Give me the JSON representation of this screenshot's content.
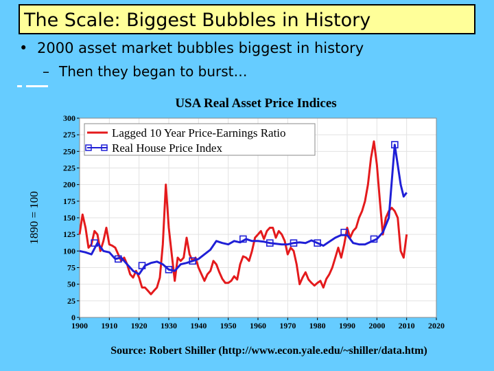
{
  "slide": {
    "title": "The Scale: Biggest Bubbles in History",
    "bullet_main": "2000 asset market bubbles biggest in history",
    "bullet_sub": "Then they began to burst…",
    "bullet_symbol": "•",
    "sub_symbol": "–"
  },
  "colors": {
    "background": "#66ccff",
    "title_bg": "#ffff99",
    "pe_series": "#e41a1c",
    "house_series": "#1f1fd6",
    "grid": "#e2e2e2",
    "plot_bg": "#ffffff"
  },
  "chart_data": {
    "type": "line",
    "title": "USA Real Asset Price Indices",
    "ylabel": "1890 = 100",
    "xlabel": "",
    "source": "Source: Robert Shiller (http://www.econ.yale.edu/~shiller/data.htm)",
    "xlim": [
      1900,
      2020
    ],
    "ylim": [
      0,
      300
    ],
    "xticks": [
      1900,
      1910,
      1920,
      1930,
      1940,
      1950,
      1960,
      1970,
      1980,
      1990,
      2000,
      2010,
      2020
    ],
    "yticks": [
      0,
      25,
      50,
      75,
      100,
      125,
      150,
      175,
      200,
      225,
      250,
      275,
      300
    ],
    "grid": true,
    "legend_position": "top-left",
    "series": [
      {
        "name": "Lagged 10 Year Price-Earnings Ratio",
        "x": [
          1900,
          1901,
          1902,
          1903,
          1904,
          1905,
          1906,
          1907,
          1908,
          1909,
          1910,
          1911,
          1912,
          1913,
          1914,
          1915,
          1916,
          1917,
          1918,
          1919,
          1920,
          1921,
          1922,
          1923,
          1924,
          1925,
          1926,
          1927,
          1928,
          1929,
          1930,
          1931,
          1932,
          1933,
          1934,
          1935,
          1936,
          1937,
          1938,
          1939,
          1940,
          1941,
          1942,
          1943,
          1944,
          1945,
          1946,
          1947,
          1948,
          1949,
          1950,
          1951,
          1952,
          1953,
          1954,
          1955,
          1956,
          1957,
          1958,
          1959,
          1960,
          1961,
          1962,
          1963,
          1964,
          1965,
          1966,
          1967,
          1968,
          1969,
          1970,
          1971,
          1972,
          1973,
          1974,
          1975,
          1976,
          1977,
          1978,
          1979,
          1980,
          1981,
          1982,
          1983,
          1984,
          1985,
          1986,
          1987,
          1988,
          1989,
          1990,
          1991,
          1992,
          1993,
          1994,
          1995,
          1996,
          1997,
          1998,
          1999,
          2000,
          2001,
          2002,
          2003,
          2004,
          2005,
          2006,
          2007,
          2008,
          2009,
          2010
        ],
        "values": [
          125,
          155,
          135,
          105,
          110,
          130,
          125,
          100,
          115,
          135,
          110,
          108,
          105,
          95,
          85,
          90,
          80,
          65,
          60,
          70,
          60,
          45,
          45,
          40,
          35,
          40,
          45,
          60,
          110,
          200,
          135,
          95,
          55,
          90,
          85,
          90,
          120,
          95,
          85,
          90,
          75,
          65,
          55,
          65,
          70,
          85,
          80,
          68,
          58,
          52,
          52,
          55,
          62,
          57,
          80,
          92,
          90,
          85,
          100,
          120,
          125,
          130,
          118,
          130,
          135,
          135,
          120,
          130,
          125,
          115,
          95,
          105,
          100,
          80,
          50,
          60,
          68,
          57,
          52,
          48,
          52,
          55,
          45,
          58,
          65,
          75,
          90,
          105,
          90,
          110,
          135,
          120,
          130,
          135,
          150,
          160,
          175,
          200,
          240,
          265,
          230,
          175,
          125,
          150,
          160,
          165,
          160,
          150,
          100,
          90,
          125
        ]
      },
      {
        "name": "Real House Price Index",
        "x": [
          1900,
          1902,
          1904,
          1906,
          1908,
          1910,
          1912,
          1914,
          1916,
          1918,
          1920,
          1922,
          1924,
          1926,
          1928,
          1930,
          1932,
          1934,
          1936,
          1938,
          1940,
          1942,
          1944,
          1946,
          1948,
          1950,
          1952,
          1954,
          1956,
          1958,
          1960,
          1962,
          1964,
          1966,
          1968,
          1970,
          1972,
          1974,
          1976,
          1978,
          1980,
          1982,
          1984,
          1986,
          1988,
          1990,
          1992,
          1994,
          1996,
          1998,
          2000,
          2002,
          2004,
          2006,
          2008,
          2009,
          2010
        ],
        "values": [
          100,
          98,
          95,
          112,
          100,
          98,
          88,
          90,
          80,
          70,
          65,
          78,
          82,
          84,
          80,
          72,
          70,
          80,
          82,
          85,
          88,
          95,
          102,
          115,
          112,
          110,
          115,
          113,
          118,
          115,
          115,
          114,
          112,
          111,
          110,
          110,
          112,
          113,
          112,
          116,
          112,
          108,
          114,
          120,
          124,
          124,
          112,
          110,
          110,
          114,
          118,
          128,
          150,
          260,
          200,
          182,
          188
        ]
      }
    ],
    "markers": [
      {
        "series": 1,
        "x": 1905,
        "value": 112
      },
      {
        "series": 1,
        "x": 1913,
        "value": 88
      },
      {
        "series": 1,
        "x": 1921,
        "value": 78
      },
      {
        "series": 1,
        "x": 1930,
        "value": 72
      },
      {
        "series": 1,
        "x": 1938,
        "value": 85
      },
      {
        "series": 1,
        "x": 1955,
        "value": 118
      },
      {
        "series": 1,
        "x": 1964,
        "value": 112
      },
      {
        "series": 1,
        "x": 1972,
        "value": 112
      },
      {
        "series": 1,
        "x": 1980,
        "value": 112
      },
      {
        "series": 1,
        "x": 1989,
        "value": 128
      },
      {
        "series": 1,
        "x": 1999,
        "value": 118
      },
      {
        "series": 1,
        "x": 2006,
        "value": 260
      }
    ]
  }
}
